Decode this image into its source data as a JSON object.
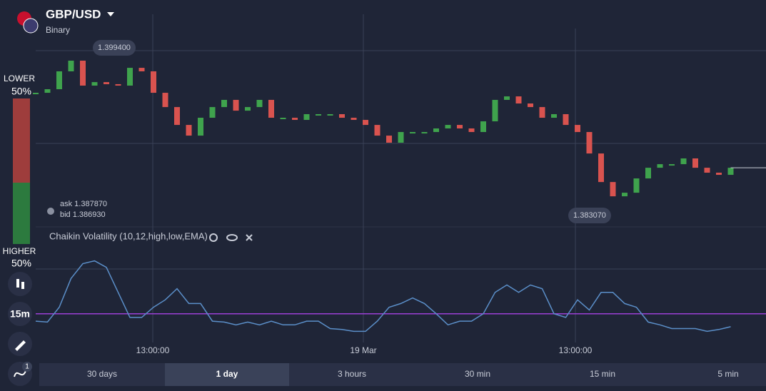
{
  "header": {
    "symbol": "GBP/USD",
    "mode": "Binary"
  },
  "sidebar": {
    "lower_label": "LOWER",
    "lower_pct": "50%",
    "higher_label": "HIGHER",
    "higher_pct": "50%",
    "timeframe": "15m",
    "badge": "1"
  },
  "quote": {
    "ask": "ask 1.387870",
    "bid": "bid 1.386930"
  },
  "chart_data": [
    {
      "type": "candlestick",
      "open": 1.395,
      "close": [
        1.39502,
        1.39537,
        1.39711,
        1.39815,
        1.39572,
        1.39606,
        1.39586,
        1.39572,
        1.39745,
        1.39711,
        1.39502,
        1.39363,
        1.39189,
        1.39085,
        1.39259,
        1.39363,
        1.39433,
        1.39328,
        1.39363,
        1.39433,
        1.39259,
        1.39259,
        1.39238,
        1.39294,
        1.39294,
        1.39294,
        1.39259,
        1.39238,
        1.39189,
        1.39085,
        1.39016,
        1.3912,
        1.3912,
        1.3912,
        1.39155,
        1.39189,
        1.39155,
        1.3912,
        1.39224,
        1.39433,
        1.39467,
        1.39398,
        1.39363,
        1.39259,
        1.39294,
        1.39189,
        1.3912,
        1.38911,
        1.38633,
        1.38494,
        1.38529,
        1.38668,
        1.38772,
        1.38807,
        1.38807,
        1.38863,
        1.38772,
        1.38724,
        1.38703,
        1.38772
      ],
      "up_color": "#3fa34d",
      "down_color": "#d9534f",
      "ylim": [
        1.38196,
        1.40093
      ],
      "markers": [
        {
          "value": 1.3994,
          "label": "1.399400"
        },
        {
          "value": 1.38307,
          "label": "1.383070"
        }
      ],
      "xlabels": [
        "13:00:00",
        "19 Mar",
        "13:00:00"
      ]
    },
    {
      "type": "line",
      "name": "Chaikin Volatility (10,12,high,low,EMA)",
      "color": "#5b8fc9",
      "level_color": "#9b3fd6",
      "values": [
        23,
        22,
        38,
        69,
        85,
        88,
        81,
        54,
        27,
        27,
        38,
        46,
        58,
        42,
        42,
        23,
        22,
        19,
        22,
        19,
        23,
        19,
        19,
        23,
        23,
        15,
        14,
        12,
        12,
        23,
        38,
        42,
        48,
        42,
        31,
        19,
        23,
        23,
        31,
        54,
        62,
        54,
        62,
        58,
        31,
        27,
        46,
        35,
        54,
        54,
        42,
        38,
        22,
        19,
        15,
        15,
        15,
        12,
        14,
        17
      ],
      "ylim": [
        0,
        100
      ],
      "level": 31
    }
  ],
  "tabs": [
    "30 days",
    "1 day",
    "3 hours",
    "30 min",
    "15 min",
    "5 min"
  ]
}
